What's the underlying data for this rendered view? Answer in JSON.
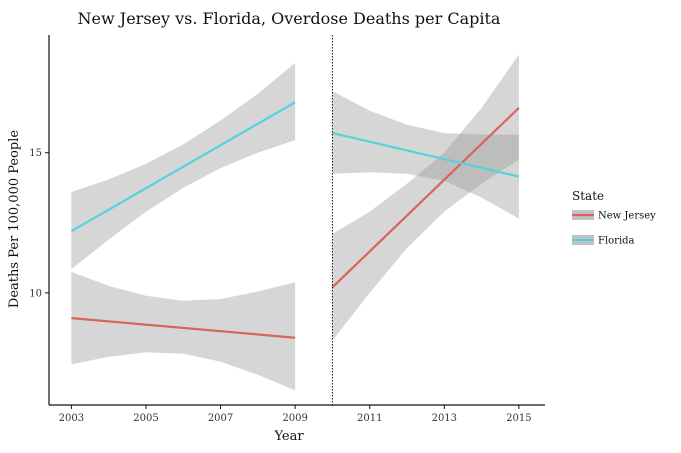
{
  "chart_data": {
    "type": "line",
    "title": "New Jersey vs. Florida, Overdose Deaths per Capita",
    "xlabel": "Year",
    "ylabel": "Deaths Per 100,000 People",
    "x_ticks": [
      "2003",
      "2005",
      "2007",
      "2009",
      "2011",
      "2013",
      "2015"
    ],
    "y_ticks": [
      "10",
      "15"
    ],
    "xlim": [
      2002.4,
      2015.7
    ],
    "ylim": [
      6.0,
      19.2
    ],
    "cutoff_year": 2010,
    "grid": false,
    "legend": {
      "title": "State",
      "placement": "right",
      "entries": [
        "New Jersey",
        "Florida"
      ]
    },
    "series": [
      {
        "name": "New Jersey",
        "color": "#d9645a",
        "segments": [
          {
            "x": [
              2003,
              2009
            ],
            "y": [
              9.1,
              8.4
            ],
            "band_x": [
              2003,
              2004,
              2005,
              2006,
              2007,
              2008,
              2009
            ],
            "band_upper": [
              10.75,
              10.25,
              9.9,
              9.72,
              9.78,
              10.05,
              10.38
            ],
            "band_lower": [
              7.45,
              7.72,
              7.88,
              7.83,
              7.55,
              7.08,
              6.52
            ]
          },
          {
            "x": [
              2010,
              2015
            ],
            "y": [
              10.2,
              16.6
            ],
            "band_x": [
              2010,
              2011,
              2012,
              2013,
              2014,
              2015
            ],
            "band_upper": [
              12.1,
              12.9,
              13.9,
              15.0,
              16.6,
              18.5
            ],
            "band_lower": [
              8.3,
              10.0,
              11.6,
              12.9,
              13.9,
              14.75
            ]
          }
        ]
      },
      {
        "name": "Florida",
        "color": "#55d2dc",
        "segments": [
          {
            "x": [
              2003,
              2009
            ],
            "y": [
              12.2,
              16.8
            ],
            "band_x": [
              2003,
              2004,
              2005,
              2006,
              2007,
              2008,
              2009
            ],
            "band_upper": [
              13.6,
              14.05,
              14.6,
              15.3,
              16.15,
              17.1,
              18.2
            ],
            "band_lower": [
              10.85,
              11.9,
              12.9,
              13.75,
              14.45,
              15.0,
              15.45
            ]
          },
          {
            "x": [
              2010,
              2015
            ],
            "y": [
              15.7,
              14.15
            ],
            "band_x": [
              2010,
              2011,
              2012,
              2013,
              2014,
              2015
            ],
            "band_upper": [
              17.2,
              16.5,
              16.0,
              15.7,
              15.65,
              15.65
            ],
            "band_lower": [
              14.25,
              14.3,
              14.25,
              14.0,
              13.4,
              12.65
            ]
          }
        ]
      }
    ]
  }
}
